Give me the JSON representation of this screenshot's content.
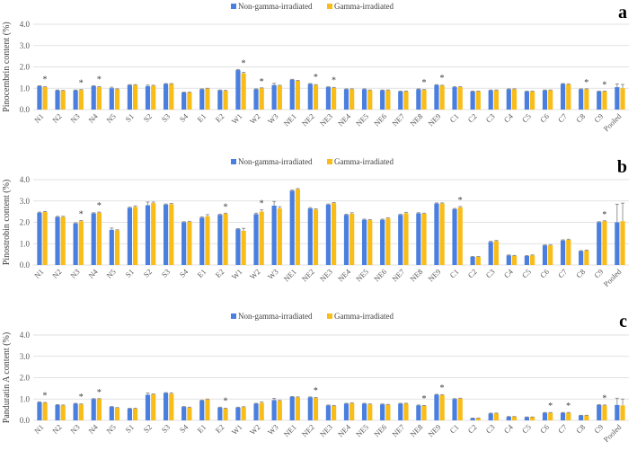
{
  "legend": {
    "series1": "Non-gamma-irradiated",
    "series2": "Gamma-irradiated"
  },
  "colors": {
    "series1": "#4a7fe0",
    "series2": "#f9bd1a",
    "error": "#7f7f7f"
  },
  "chart_data": [
    {
      "type": "bar",
      "panel": "a",
      "ylabel": "Pinocembrin content (%)",
      "ylim": [
        0,
        4
      ],
      "yticks": [
        "0.0",
        "1.0",
        "2.0",
        "3.0",
        "4.0"
      ],
      "grid": true,
      "legend_position": "top-center",
      "categories": [
        "N1",
        "N2",
        "N3",
        "N4",
        "N5",
        "S1",
        "S2",
        "S3",
        "S4",
        "E1",
        "E2",
        "W1",
        "W2",
        "W3",
        "NE1",
        "NE2",
        "NE3",
        "NE4",
        "NE5",
        "NE6",
        "NE7",
        "NE8",
        "NE9",
        "C1",
        "C2",
        "C3",
        "C4",
        "C5",
        "C6",
        "C7",
        "C8",
        "C9",
        "Pooled"
      ],
      "series": [
        {
          "name": "Non-gamma-irradiated",
          "values": [
            1.1,
            0.9,
            0.9,
            1.1,
            1.0,
            1.15,
            1.1,
            1.2,
            0.8,
            0.95,
            0.9,
            1.85,
            0.95,
            1.15,
            1.4,
            1.2,
            1.05,
            0.95,
            0.95,
            0.9,
            0.85,
            0.95,
            1.15,
            1.05,
            0.85,
            0.9,
            0.95,
            0.85,
            0.9,
            1.2,
            0.95,
            0.85,
            1.05
          ],
          "errors": [
            0.02,
            0.02,
            0.02,
            0.02,
            0.05,
            0.02,
            0.05,
            0.02,
            0.02,
            0.02,
            0.02,
            0.03,
            0.02,
            0.08,
            0.02,
            0.02,
            0.02,
            0.02,
            0.02,
            0.02,
            0.02,
            0.02,
            0.02,
            0.02,
            0.02,
            0.02,
            0.02,
            0.02,
            0.02,
            0.02,
            0.02,
            0.02,
            0.15
          ]
        },
        {
          "name": "Gamma-irradiated",
          "values": [
            1.05,
            0.88,
            0.92,
            1.05,
            0.95,
            1.15,
            1.12,
            1.2,
            0.8,
            0.98,
            0.88,
            1.7,
            1.0,
            1.12,
            1.35,
            1.15,
            1.02,
            0.95,
            0.9,
            0.9,
            0.85,
            0.92,
            1.12,
            1.05,
            0.85,
            0.9,
            0.95,
            0.85,
            0.9,
            1.18,
            0.95,
            0.85,
            1.0
          ],
          "errors": [
            0.02,
            0.02,
            0.02,
            0.02,
            0.02,
            0.02,
            0.02,
            0.02,
            0.02,
            0.02,
            0.02,
            0.05,
            0.02,
            0.02,
            0.02,
            0.02,
            0.02,
            0.02,
            0.02,
            0.02,
            0.02,
            0.02,
            0.02,
            0.02,
            0.02,
            0.02,
            0.02,
            0.02,
            0.02,
            0.02,
            0.02,
            0.02,
            0.18
          ]
        }
      ],
      "significant": [
        "N1",
        "N3",
        "N4",
        "W1",
        "W2",
        "NE2",
        "NE3",
        "NE8",
        "NE9",
        "C8",
        "C9"
      ]
    },
    {
      "type": "bar",
      "panel": "b",
      "ylabel": "Pinostrobin content (%)",
      "ylim": [
        0,
        4
      ],
      "yticks": [
        "0.0",
        "1.0",
        "2.0",
        "3.0",
        "4.0"
      ],
      "grid": true,
      "legend_position": "top-center",
      "categories": [
        "N1",
        "N2",
        "N3",
        "N4",
        "N5",
        "S1",
        "S2",
        "S3",
        "S4",
        "E1",
        "E2",
        "W1",
        "W2",
        "W3",
        "NE1",
        "NE2",
        "NE3",
        "NE4",
        "NE5",
        "NE6",
        "NE7",
        "NE8",
        "NE9",
        "C1",
        "C2",
        "C3",
        "C4",
        "C5",
        "C6",
        "C7",
        "C8",
        "C9",
        "Pooled"
      ],
      "series": [
        {
          "name": "Non-gamma-irradiated",
          "values": [
            2.45,
            2.25,
            1.95,
            2.42,
            1.65,
            2.68,
            2.8,
            2.83,
            2.0,
            2.22,
            2.35,
            1.68,
            2.38,
            2.78,
            3.48,
            2.65,
            2.83,
            2.35,
            2.12,
            2.12,
            2.35,
            2.42,
            2.88,
            2.62,
            0.38,
            1.08,
            0.45,
            0.42,
            0.92,
            1.15,
            0.65,
            2.0,
            2.0
          ],
          "errors": [
            0.03,
            0.03,
            0.03,
            0.03,
            0.08,
            0.03,
            0.15,
            0.03,
            0.03,
            0.03,
            0.03,
            0.03,
            0.05,
            0.2,
            0.03,
            0.04,
            0.03,
            0.03,
            0.03,
            0.03,
            0.03,
            0.03,
            0.03,
            0.03,
            0.02,
            0.03,
            0.02,
            0.02,
            0.02,
            0.03,
            0.02,
            0.03,
            0.85
          ]
        },
        {
          "name": "Gamma-irradiated",
          "values": [
            2.48,
            2.25,
            2.05,
            2.45,
            1.62,
            2.72,
            2.9,
            2.85,
            2.02,
            2.28,
            2.4,
            1.6,
            2.5,
            2.65,
            3.55,
            2.6,
            2.9,
            2.4,
            2.1,
            2.18,
            2.42,
            2.4,
            2.88,
            2.7,
            0.38,
            1.12,
            0.43,
            0.45,
            0.92,
            1.18,
            0.68,
            2.05,
            2.05
          ],
          "errors": [
            0.03,
            0.03,
            0.03,
            0.03,
            0.03,
            0.05,
            0.05,
            0.03,
            0.03,
            0.08,
            0.03,
            0.12,
            0.08,
            0.08,
            0.03,
            0.03,
            0.03,
            0.05,
            0.03,
            0.03,
            0.05,
            0.03,
            0.03,
            0.04,
            0.02,
            0.03,
            0.02,
            0.02,
            0.02,
            0.03,
            0.02,
            0.02,
            0.85
          ]
        }
      ],
      "significant": [
        "N3",
        "N4",
        "E2",
        "W2",
        "C1",
        "C9"
      ]
    },
    {
      "type": "bar",
      "panel": "c",
      "ylabel": "Panduratin A content (%)",
      "ylim": [
        0,
        4
      ],
      "yticks": [
        "0.0",
        "1.0",
        "2.0",
        "3.0",
        "4.0"
      ],
      "grid": true,
      "legend_position": "top-center",
      "categories": [
        "N1",
        "N2",
        "N3",
        "N4",
        "N5",
        "S1",
        "S2",
        "S3",
        "S4",
        "E1",
        "E2",
        "W1",
        "W2",
        "W3",
        "NE1",
        "NE2",
        "NE3",
        "NE4",
        "NE5",
        "NE6",
        "NE7",
        "NE8",
        "NE9",
        "C1",
        "C2",
        "C3",
        "C4",
        "C5",
        "C6",
        "C7",
        "C8",
        "C9",
        "Pooled"
      ],
      "series": [
        {
          "name": "Non-gamma-irradiated",
          "values": [
            0.85,
            0.72,
            0.78,
            1.0,
            0.63,
            0.55,
            1.2,
            1.28,
            0.63,
            0.93,
            0.6,
            0.6,
            0.78,
            0.95,
            1.1,
            1.08,
            0.7,
            0.78,
            0.78,
            0.75,
            0.78,
            0.7,
            1.2,
            1.0,
            0.1,
            0.32,
            0.17,
            0.15,
            0.35,
            0.35,
            0.23,
            0.72,
            0.72
          ],
          "errors": [
            0.02,
            0.02,
            0.02,
            0.02,
            0.02,
            0.02,
            0.08,
            0.02,
            0.02,
            0.02,
            0.02,
            0.02,
            0.02,
            0.08,
            0.02,
            0.02,
            0.02,
            0.02,
            0.02,
            0.02,
            0.02,
            0.02,
            0.02,
            0.02,
            0.01,
            0.02,
            0.01,
            0.01,
            0.02,
            0.02,
            0.01,
            0.02,
            0.32
          ]
        },
        {
          "name": "Gamma-irradiated",
          "values": [
            0.82,
            0.7,
            0.75,
            1.0,
            0.58,
            0.55,
            1.22,
            1.25,
            0.6,
            0.98,
            0.55,
            0.62,
            0.82,
            0.92,
            1.08,
            1.05,
            0.68,
            0.8,
            0.75,
            0.73,
            0.78,
            0.68,
            1.18,
            1.02,
            0.1,
            0.32,
            0.17,
            0.15,
            0.35,
            0.35,
            0.23,
            0.7,
            0.7
          ],
          "errors": [
            0.02,
            0.02,
            0.02,
            0.02,
            0.02,
            0.02,
            0.02,
            0.04,
            0.02,
            0.02,
            0.02,
            0.02,
            0.04,
            0.02,
            0.02,
            0.02,
            0.02,
            0.02,
            0.02,
            0.02,
            0.02,
            0.02,
            0.02,
            0.02,
            0.01,
            0.02,
            0.01,
            0.01,
            0.02,
            0.02,
            0.01,
            0.02,
            0.3
          ]
        }
      ],
      "significant": [
        "N1",
        "N3",
        "N4",
        "E2",
        "NE2",
        "NE8",
        "NE9",
        "C6",
        "C7",
        "C9"
      ]
    }
  ]
}
